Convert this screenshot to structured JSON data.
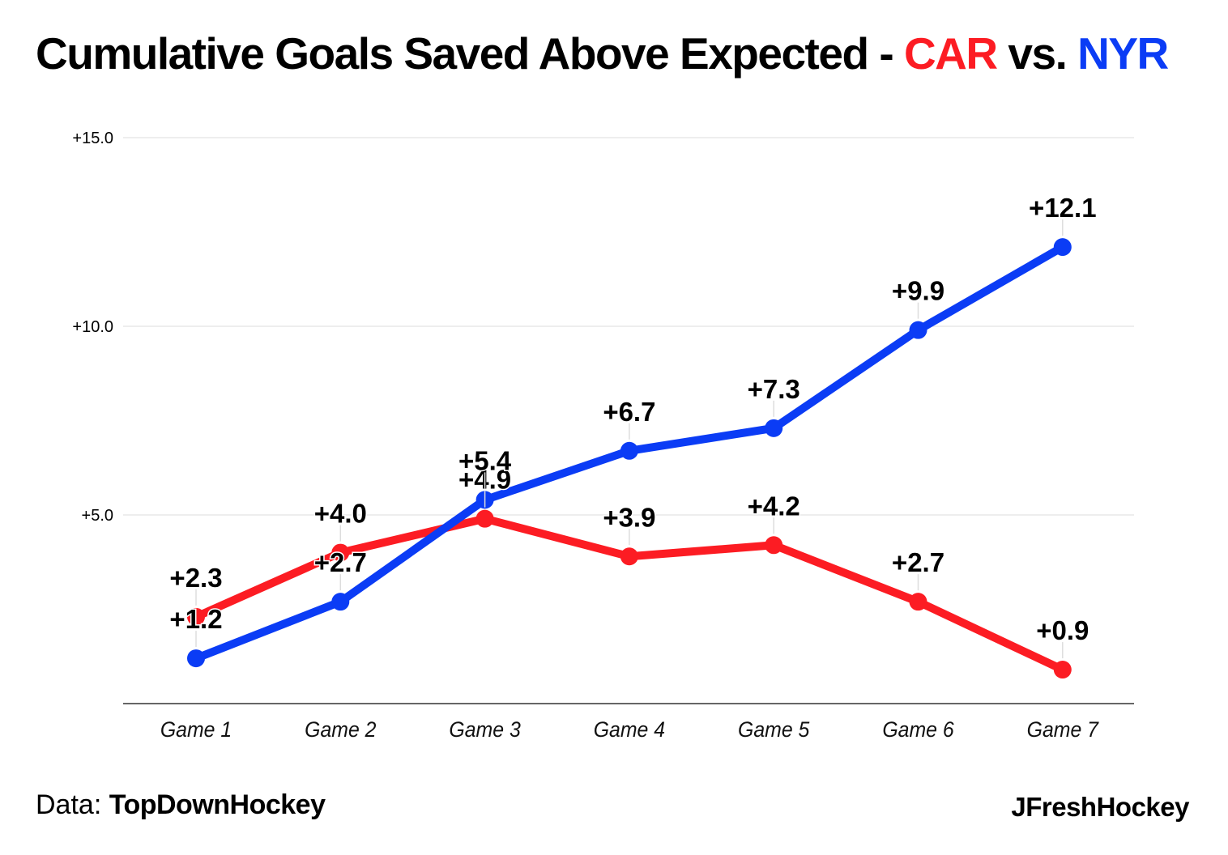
{
  "title": {
    "prefix": "Cumulative Goals Saved Above Expected - ",
    "team_a": "CAR",
    "middle": " vs. ",
    "team_b": "NYR"
  },
  "colors": {
    "car": "#fc1c23",
    "nyr": "#0b3cf5",
    "grid": "#e9e9e9",
    "axis": "#333333",
    "text": "#000000"
  },
  "chart_data": {
    "type": "line",
    "title": "Cumulative Goals Saved Above Expected - CAR vs. NYR",
    "xlabel": "",
    "ylabel": "",
    "categories": [
      "Game 1",
      "Game 2",
      "Game 3",
      "Game 4",
      "Game 5",
      "Game 6",
      "Game 7"
    ],
    "ylim": [
      0,
      15
    ],
    "yticks": [
      5,
      10,
      15
    ],
    "ytick_labels": [
      "+5.0",
      "+10.0",
      "+15.0"
    ],
    "grid": true,
    "series": [
      {
        "name": "CAR",
        "values": [
          2.3,
          4.0,
          4.9,
          3.9,
          4.2,
          2.7,
          0.9
        ],
        "labels": [
          "+2.3",
          "+4.0",
          "+4.9",
          "+3.9",
          "+4.2",
          "+2.7",
          "+0.9"
        ]
      },
      {
        "name": "NYR",
        "values": [
          1.2,
          2.7,
          5.4,
          6.7,
          7.3,
          9.9,
          12.1
        ],
        "labels": [
          "+1.2",
          "+2.7",
          "+5.4",
          "+6.7",
          "+7.3",
          "+9.9",
          "+12.1"
        ]
      }
    ]
  },
  "footer": {
    "source_prefix": "Data: ",
    "source_name": "TopDownHockey",
    "brand": "JFreshHockey"
  }
}
